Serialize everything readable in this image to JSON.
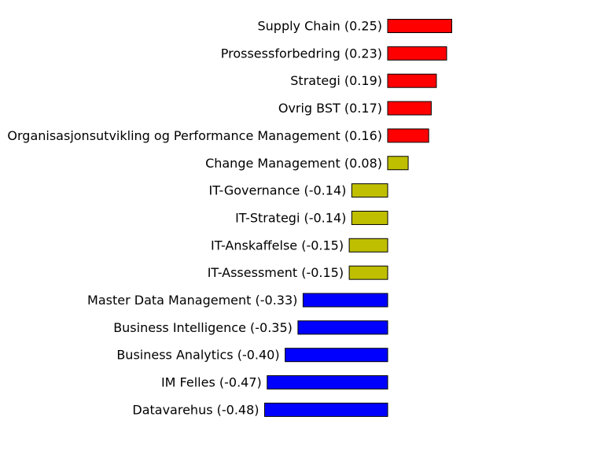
{
  "chart_data": {
    "type": "bar",
    "orientation": "horizontal",
    "title": "",
    "xlabel": "",
    "ylabel": "",
    "grid": false,
    "legend": "none",
    "colors": {
      "high": "#ff0000",
      "mid": "#bfbf00",
      "low": "#0000ff"
    },
    "bars": [
      {
        "label": "Supply Chain (0.25)",
        "value": 0.25,
        "color": "#ff0000"
      },
      {
        "label": "Prossessforbedring (0.23)",
        "value": 0.23,
        "color": "#ff0000"
      },
      {
        "label": "Strategi (0.19)",
        "value": 0.19,
        "color": "#ff0000"
      },
      {
        "label": "Ovrig BST (0.17)",
        "value": 0.17,
        "color": "#ff0000"
      },
      {
        "label": "Organisasjonsutvikling og Performance Management (0.16)",
        "value": 0.16,
        "color": "#ff0000"
      },
      {
        "label": "Change Management (0.08)",
        "value": 0.08,
        "color": "#bfbf00"
      },
      {
        "label": "IT-Governance (-0.14)",
        "value": -0.14,
        "color": "#bfbf00"
      },
      {
        "label": "IT-Strategi (-0.14)",
        "value": -0.14,
        "color": "#bfbf00"
      },
      {
        "label": "IT-Anskaffelse (-0.15)",
        "value": -0.15,
        "color": "#bfbf00"
      },
      {
        "label": "IT-Assessment (-0.15)",
        "value": -0.15,
        "color": "#bfbf00"
      },
      {
        "label": "Master Data Management (-0.33)",
        "value": -0.33,
        "color": "#0000ff"
      },
      {
        "label": "Business Intelligence (-0.35)",
        "value": -0.35,
        "color": "#0000ff"
      },
      {
        "label": "Business Analytics (-0.40)",
        "value": -0.4,
        "color": "#0000ff"
      },
      {
        "label": "IM Felles (-0.47)",
        "value": -0.47,
        "color": "#0000ff"
      },
      {
        "label": "Datavarehus (-0.48)",
        "value": -0.48,
        "color": "#0000ff"
      }
    ]
  }
}
